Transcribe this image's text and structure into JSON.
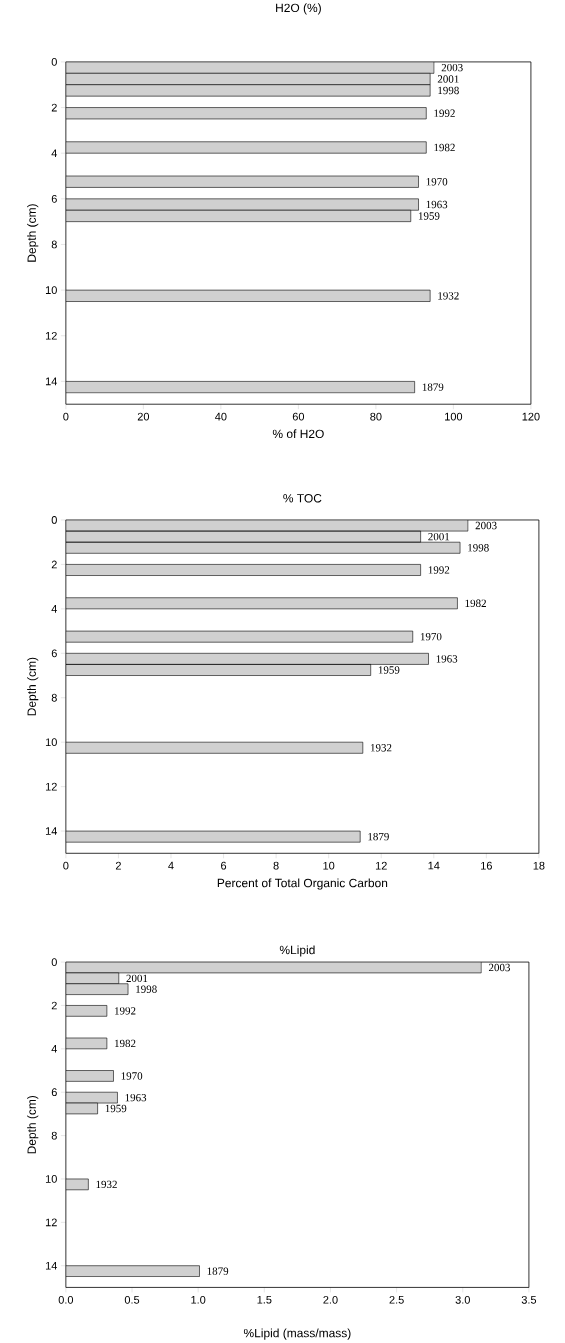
{
  "chart_data": [
    {
      "type": "bar",
      "orientation": "horizontal",
      "title": "H2O (%)",
      "xlabel": "% of H2O",
      "ylabel": "Depth (cm)",
      "color": "#d0d0d0",
      "x": [
        0.25,
        0.75,
        1.25,
        2.25,
        3.75,
        5.25,
        6.25,
        6.75,
        10.25,
        14.25
      ],
      "values": [
        95,
        94,
        94,
        93,
        93,
        91,
        91,
        89,
        94,
        90
      ],
      "xlim": [
        0,
        120
      ],
      "xticks": [
        0,
        20,
        40,
        60,
        80,
        100,
        120
      ],
      "ylim": [
        15,
        0
      ],
      "yticks": [
        0,
        2,
        4,
        6,
        8,
        10,
        12,
        14
      ],
      "annotations": [
        {
          "text": "2003",
          "x": 95,
          "y": 0.25
        },
        {
          "text": "2001",
          "x": 94,
          "y": 0.75
        },
        {
          "text": "1998",
          "x": 94,
          "y": 1.25
        },
        {
          "text": "1992",
          "x": 93,
          "y": 2.25
        },
        {
          "text": "1982",
          "x": 93,
          "y": 3.75
        },
        {
          "text": "1970",
          "x": 91,
          "y": 5.25
        },
        {
          "text": "1963",
          "x": 91,
          "y": 6.25
        },
        {
          "text": "1959",
          "x": 89,
          "y": 6.75
        },
        {
          "text": "1932",
          "x": 94,
          "y": 10.25
        },
        {
          "text": "1879",
          "x": 90,
          "y": 14.25
        }
      ]
    },
    {
      "type": "bar",
      "orientation": "horizontal",
      "title": "% TOC",
      "xlabel": "Percent of Total Organic Carbon",
      "ylabel": "Depth (cm)",
      "color": "#d0d0d0",
      "x": [
        0.25,
        0.75,
        1.25,
        2.25,
        3.75,
        5.25,
        6.25,
        6.75,
        10.25,
        14.25
      ],
      "values": [
        15.3,
        13.5,
        15.0,
        13.5,
        14.9,
        13.2,
        13.8,
        11.6,
        11.3,
        11.2
      ],
      "xlim": [
        0,
        18
      ],
      "xticks": [
        0,
        2,
        4,
        6,
        8,
        10,
        12,
        14,
        16,
        18
      ],
      "ylim": [
        15,
        0
      ],
      "yticks": [
        0,
        2,
        4,
        6,
        8,
        10,
        12,
        14
      ],
      "annotations": [
        {
          "text": "2003",
          "x": 15.3,
          "y": 0.25
        },
        {
          "text": "2001",
          "x": 13.5,
          "y": 0.75
        },
        {
          "text": "1998",
          "x": 15.0,
          "y": 1.25
        },
        {
          "text": "1992",
          "x": 13.5,
          "y": 2.25
        },
        {
          "text": "1982",
          "x": 14.9,
          "y": 3.75
        },
        {
          "text": "1970",
          "x": 13.2,
          "y": 5.25
        },
        {
          "text": "1963",
          "x": 13.8,
          "y": 6.25
        },
        {
          "text": "1959",
          "x": 11.6,
          "y": 6.75
        },
        {
          "text": "1932",
          "x": 11.3,
          "y": 10.25
        },
        {
          "text": "1879",
          "x": 11.2,
          "y": 14.25
        }
      ]
    },
    {
      "type": "bar",
      "orientation": "horizontal",
      "title": "%Lipid",
      "xlabel": "%Lipid (mass/mass)",
      "ylabel": "Depth (cm)",
      "color": "#d0d0d0",
      "x": [
        0.25,
        0.75,
        1.25,
        2.25,
        3.75,
        5.25,
        6.25,
        6.75,
        10.25,
        14.25
      ],
      "values": [
        3.14,
        0.4,
        0.47,
        0.31,
        0.31,
        0.36,
        0.39,
        0.24,
        0.17,
        1.01
      ],
      "xlim": [
        0,
        3.5
      ],
      "xticks": [
        {
          "value": 0,
          "label": "0.0"
        },
        {
          "value": 0.5,
          "label": "0.5"
        },
        {
          "value": 1,
          "label": "1.0"
        },
        {
          "value": 1.5,
          "label": "1.5"
        },
        {
          "value": 2,
          "label": "2.0"
        },
        {
          "value": 2.5,
          "label": "2.5"
        },
        {
          "value": 3,
          "label": "3.0"
        },
        {
          "value": 3.5,
          "label": "3.5"
        }
      ],
      "ylim": [
        15,
        0
      ],
      "yticks": [
        0,
        2,
        4,
        6,
        8,
        10,
        12,
        14
      ],
      "annotations": [
        {
          "text": "2003",
          "x": 3.14,
          "y": 0.25
        },
        {
          "text": "2001",
          "x": 0.4,
          "y": 0.75
        },
        {
          "text": "1998",
          "x": 0.47,
          "y": 1.25
        },
        {
          "text": "1992",
          "x": 0.31,
          "y": 2.25
        },
        {
          "text": "1982",
          "x": 0.31,
          "y": 3.75
        },
        {
          "text": "1970",
          "x": 0.36,
          "y": 5.25
        },
        {
          "text": "1963",
          "x": 0.39,
          "y": 6.25
        },
        {
          "text": "1959",
          "x": 0.24,
          "y": 6.75
        },
        {
          "text": "1932",
          "x": 0.17,
          "y": 10.25
        },
        {
          "text": "1879",
          "x": 1.01,
          "y": 14.25
        }
      ]
    }
  ]
}
